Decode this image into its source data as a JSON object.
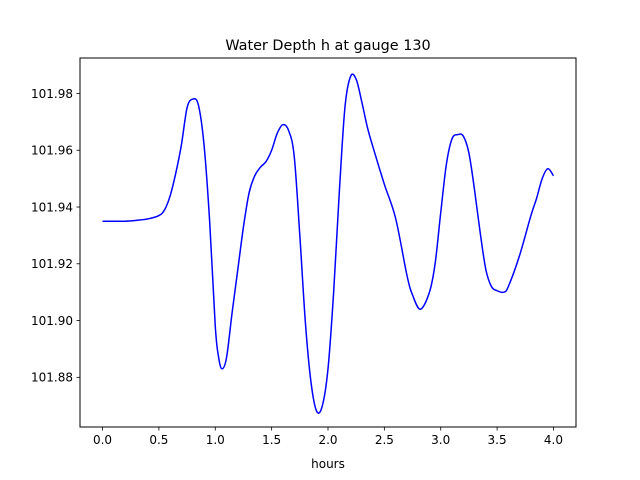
{
  "chart_data": {
    "type": "line",
    "title": "Water Depth h at gauge 130",
    "xlabel": "hours",
    "ylabel": "",
    "xlim": [
      -0.2,
      4.2
    ],
    "ylim": [
      101.8625,
      101.9925
    ],
    "x_ticks": [
      0.0,
      0.5,
      1.0,
      1.5,
      2.0,
      2.5,
      3.0,
      3.5,
      4.0
    ],
    "x_tick_labels": [
      "0.0",
      "0.5",
      "1.0",
      "1.5",
      "2.0",
      "2.5",
      "3.0",
      "3.5",
      "4.0"
    ],
    "y_ticks": [
      101.88,
      101.9,
      101.92,
      101.94,
      101.96,
      101.98
    ],
    "y_tick_labels": [
      "101.88",
      "101.90",
      "101.92",
      "101.94",
      "101.96",
      "101.98"
    ],
    "grid": false,
    "legend": "none",
    "series": [
      {
        "color": "#0000ff",
        "x": [
          0.0,
          0.1,
          0.2,
          0.3,
          0.4,
          0.5,
          0.55,
          0.6,
          0.65,
          0.7,
          0.75,
          0.8,
          0.85,
          0.9,
          0.95,
          1.0,
          1.03,
          1.06,
          1.1,
          1.15,
          1.2,
          1.25,
          1.3,
          1.35,
          1.4,
          1.45,
          1.5,
          1.55,
          1.6,
          1.65,
          1.7,
          1.75,
          1.8,
          1.85,
          1.9,
          1.95,
          2.0,
          2.05,
          2.1,
          2.15,
          2.2,
          2.25,
          2.3,
          2.35,
          2.4,
          2.5,
          2.6,
          2.7,
          2.75,
          2.82,
          2.9,
          2.95,
          3.0,
          3.05,
          3.1,
          3.15,
          3.2,
          3.25,
          3.3,
          3.35,
          3.4,
          3.45,
          3.5,
          3.56,
          3.6,
          3.7,
          3.8,
          3.85,
          3.9,
          3.95,
          4.0
        ],
        "y": [
          101.935,
          101.935,
          101.935,
          101.9353,
          101.9358,
          101.937,
          101.939,
          101.944,
          101.952,
          101.962,
          101.975,
          101.978,
          101.976,
          101.962,
          101.935,
          101.898,
          101.887,
          101.883,
          101.887,
          101.903,
          101.918,
          101.933,
          101.945,
          101.951,
          101.954,
          101.956,
          101.96,
          101.966,
          101.969,
          101.967,
          101.958,
          101.93,
          101.899,
          101.878,
          101.868,
          101.87,
          101.883,
          101.91,
          101.945,
          101.975,
          101.986,
          101.985,
          101.977,
          101.968,
          101.961,
          101.948,
          101.936,
          101.916,
          101.909,
          101.904,
          101.91,
          101.92,
          101.938,
          101.955,
          101.964,
          101.9655,
          101.965,
          101.959,
          101.946,
          101.931,
          101.918,
          101.912,
          101.9105,
          101.91,
          101.912,
          101.923,
          101.937,
          101.943,
          101.95,
          101.9535,
          101.951
        ]
      }
    ]
  }
}
